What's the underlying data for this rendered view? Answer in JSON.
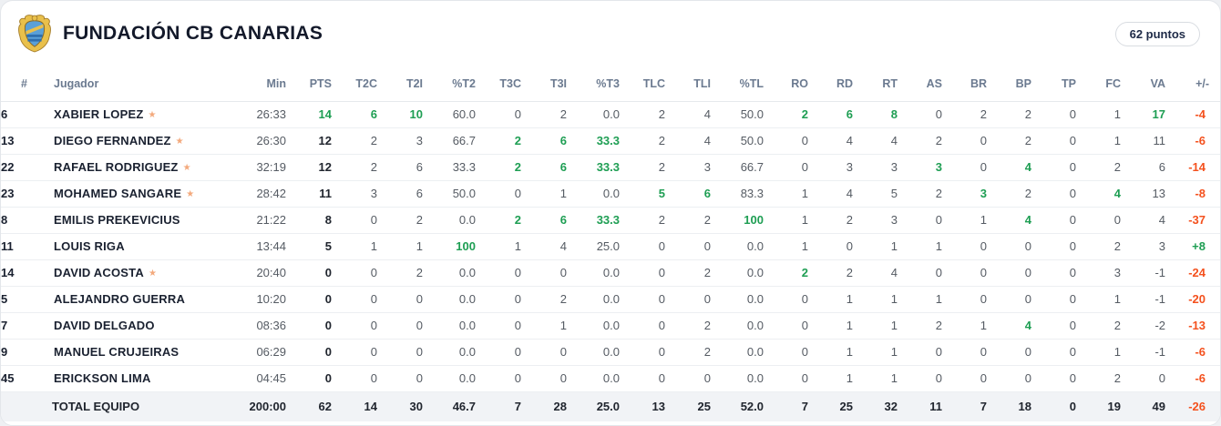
{
  "colors": {
    "green": "#1e9e53",
    "orange": "#f4511e",
    "header_text": "#6b7a90",
    "name_text": "#1a2130",
    "cell_text": "#555b63",
    "total_bg": "#f1f3f6",
    "star": "#f3a97c"
  },
  "header": {
    "title": "FUNDACIÓN CB CANARIAS",
    "badge": "62 puntos"
  },
  "icons": {
    "starter_star": "★",
    "team_logo": "club-crest"
  },
  "table": {
    "columns": [
      {
        "key": "num",
        "label": "#"
      },
      {
        "key": "name",
        "label": "Jugador"
      },
      {
        "key": "min",
        "label": "Min"
      },
      {
        "key": "pts",
        "label": "PTS"
      },
      {
        "key": "t2c",
        "label": "T2C"
      },
      {
        "key": "t2i",
        "label": "T2I"
      },
      {
        "key": "pt2",
        "label": "%T2"
      },
      {
        "key": "t3c",
        "label": "T3C"
      },
      {
        "key": "t3i",
        "label": "T3I"
      },
      {
        "key": "pt3",
        "label": "%T3"
      },
      {
        "key": "tlc",
        "label": "TLC"
      },
      {
        "key": "tli",
        "label": "TLI"
      },
      {
        "key": "ptl",
        "label": "%TL"
      },
      {
        "key": "ro",
        "label": "RO"
      },
      {
        "key": "rd",
        "label": "RD"
      },
      {
        "key": "rt",
        "label": "RT"
      },
      {
        "key": "as",
        "label": "AS"
      },
      {
        "key": "br",
        "label": "BR"
      },
      {
        "key": "bp",
        "label": "BP"
      },
      {
        "key": "tp",
        "label": "TP"
      },
      {
        "key": "fc",
        "label": "FC"
      },
      {
        "key": "va",
        "label": "VA"
      },
      {
        "key": "pm",
        "label": "+/-"
      }
    ],
    "stat_keys": [
      "min",
      "pts",
      "t2c",
      "t2i",
      "pt2",
      "t3c",
      "t3i",
      "pt3",
      "tlc",
      "tli",
      "ptl",
      "ro",
      "rd",
      "rt",
      "as",
      "br",
      "bp",
      "tp",
      "fc",
      "va",
      "pm"
    ],
    "players": [
      {
        "num": "6",
        "name": "XABIER LOPEZ",
        "starter": true,
        "stats": {
          "min": "26:33",
          "pts": "14",
          "t2c": "6",
          "t2i": "10",
          "pt2": "60.0",
          "t3c": "0",
          "t3i": "2",
          "pt3": "0.0",
          "tlc": "2",
          "tli": "4",
          "ptl": "50.0",
          "ro": "2",
          "rd": "6",
          "rt": "8",
          "as": "0",
          "br": "2",
          "bp": "2",
          "tp": "0",
          "fc": "1",
          "va": "17",
          "pm": "-4"
        },
        "green": [
          "pts",
          "t2c",
          "t2i",
          "ro",
          "rd",
          "rt",
          "va"
        ]
      },
      {
        "num": "13",
        "name": "DIEGO FERNANDEZ",
        "starter": true,
        "stats": {
          "min": "26:30",
          "pts": "12",
          "t2c": "2",
          "t2i": "3",
          "pt2": "66.7",
          "t3c": "2",
          "t3i": "6",
          "pt3": "33.3",
          "tlc": "2",
          "tli": "4",
          "ptl": "50.0",
          "ro": "0",
          "rd": "4",
          "rt": "4",
          "as": "2",
          "br": "0",
          "bp": "2",
          "tp": "0",
          "fc": "1",
          "va": "11",
          "pm": "-6"
        },
        "green": [
          "t3c",
          "t3i",
          "pt3"
        ]
      },
      {
        "num": "22",
        "name": "RAFAEL RODRIGUEZ",
        "starter": true,
        "stats": {
          "min": "32:19",
          "pts": "12",
          "t2c": "2",
          "t2i": "6",
          "pt2": "33.3",
          "t3c": "2",
          "t3i": "6",
          "pt3": "33.3",
          "tlc": "2",
          "tli": "3",
          "ptl": "66.7",
          "ro": "0",
          "rd": "3",
          "rt": "3",
          "as": "3",
          "br": "0",
          "bp": "4",
          "tp": "0",
          "fc": "2",
          "va": "6",
          "pm": "-14"
        },
        "green": [
          "t3c",
          "t3i",
          "pt3",
          "as",
          "bp"
        ]
      },
      {
        "num": "23",
        "name": "MOHAMED SANGARE",
        "starter": true,
        "stats": {
          "min": "28:42",
          "pts": "11",
          "t2c": "3",
          "t2i": "6",
          "pt2": "50.0",
          "t3c": "0",
          "t3i": "1",
          "pt3": "0.0",
          "tlc": "5",
          "tli": "6",
          "ptl": "83.3",
          "ro": "1",
          "rd": "4",
          "rt": "5",
          "as": "2",
          "br": "3",
          "bp": "2",
          "tp": "0",
          "fc": "4",
          "va": "13",
          "pm": "-8"
        },
        "green": [
          "tlc",
          "tli",
          "br",
          "fc"
        ]
      },
      {
        "num": "8",
        "name": "EMILIS PREKEVICIUS",
        "starter": false,
        "stats": {
          "min": "21:22",
          "pts": "8",
          "t2c": "0",
          "t2i": "2",
          "pt2": "0.0",
          "t3c": "2",
          "t3i": "6",
          "pt3": "33.3",
          "tlc": "2",
          "tli": "2",
          "ptl": "100",
          "ro": "1",
          "rd": "2",
          "rt": "3",
          "as": "0",
          "br": "1",
          "bp": "4",
          "tp": "0",
          "fc": "0",
          "va": "4",
          "pm": "-37"
        },
        "green": [
          "t3c",
          "t3i",
          "pt3",
          "ptl",
          "bp"
        ]
      },
      {
        "num": "11",
        "name": "LOUIS RIGA",
        "starter": false,
        "stats": {
          "min": "13:44",
          "pts": "5",
          "t2c": "1",
          "t2i": "1",
          "pt2": "100",
          "t3c": "1",
          "t3i": "4",
          "pt3": "25.0",
          "tlc": "0",
          "tli": "0",
          "ptl": "0.0",
          "ro": "1",
          "rd": "0",
          "rt": "1",
          "as": "1",
          "br": "0",
          "bp": "0",
          "tp": "0",
          "fc": "2",
          "va": "3",
          "pm": "+8"
        },
        "green": [
          "pt2"
        ]
      },
      {
        "num": "14",
        "name": "DAVID ACOSTA",
        "starter": true,
        "stats": {
          "min": "20:40",
          "pts": "0",
          "t2c": "0",
          "t2i": "2",
          "pt2": "0.0",
          "t3c": "0",
          "t3i": "0",
          "pt3": "0.0",
          "tlc": "0",
          "tli": "2",
          "ptl": "0.0",
          "ro": "2",
          "rd": "2",
          "rt": "4",
          "as": "0",
          "br": "0",
          "bp": "0",
          "tp": "0",
          "fc": "3",
          "va": "-1",
          "pm": "-24"
        },
        "green": [
          "ro"
        ]
      },
      {
        "num": "5",
        "name": "ALEJANDRO GUERRA",
        "starter": false,
        "stats": {
          "min": "10:20",
          "pts": "0",
          "t2c": "0",
          "t2i": "0",
          "pt2": "0.0",
          "t3c": "0",
          "t3i": "2",
          "pt3": "0.0",
          "tlc": "0",
          "tli": "0",
          "ptl": "0.0",
          "ro": "0",
          "rd": "1",
          "rt": "1",
          "as": "1",
          "br": "0",
          "bp": "0",
          "tp": "0",
          "fc": "1",
          "va": "-1",
          "pm": "-20"
        },
        "green": []
      },
      {
        "num": "7",
        "name": "DAVID DELGADO",
        "starter": false,
        "stats": {
          "min": "08:36",
          "pts": "0",
          "t2c": "0",
          "t2i": "0",
          "pt2": "0.0",
          "t3c": "0",
          "t3i": "1",
          "pt3": "0.0",
          "tlc": "0",
          "tli": "2",
          "ptl": "0.0",
          "ro": "0",
          "rd": "1",
          "rt": "1",
          "as": "2",
          "br": "1",
          "bp": "4",
          "tp": "0",
          "fc": "2",
          "va": "-2",
          "pm": "-13"
        },
        "green": [
          "bp"
        ]
      },
      {
        "num": "9",
        "name": "MANUEL CRUJEIRAS",
        "starter": false,
        "stats": {
          "min": "06:29",
          "pts": "0",
          "t2c": "0",
          "t2i": "0",
          "pt2": "0.0",
          "t3c": "0",
          "t3i": "0",
          "pt3": "0.0",
          "tlc": "0",
          "tli": "2",
          "ptl": "0.0",
          "ro": "0",
          "rd": "1",
          "rt": "1",
          "as": "0",
          "br": "0",
          "bp": "0",
          "tp": "0",
          "fc": "1",
          "va": "-1",
          "pm": "-6"
        },
        "green": []
      },
      {
        "num": "45",
        "name": "ERICKSON LIMA",
        "starter": false,
        "stats": {
          "min": "04:45",
          "pts": "0",
          "t2c": "0",
          "t2i": "0",
          "pt2": "0.0",
          "t3c": "0",
          "t3i": "0",
          "pt3": "0.0",
          "tlc": "0",
          "tli": "0",
          "ptl": "0.0",
          "ro": "0",
          "rd": "1",
          "rt": "1",
          "as": "0",
          "br": "0",
          "bp": "0",
          "tp": "0",
          "fc": "2",
          "va": "0",
          "pm": "-6"
        },
        "green": []
      }
    ],
    "total": {
      "label": "TOTAL EQUIPO",
      "stats": {
        "min": "200:00",
        "pts": "62",
        "t2c": "14",
        "t2i": "30",
        "pt2": "46.7",
        "t3c": "7",
        "t3i": "28",
        "pt3": "25.0",
        "tlc": "13",
        "tli": "25",
        "ptl": "52.0",
        "ro": "7",
        "rd": "25",
        "rt": "32",
        "as": "11",
        "br": "7",
        "bp": "18",
        "tp": "0",
        "fc": "19",
        "va": "49",
        "pm": "-26"
      }
    }
  }
}
